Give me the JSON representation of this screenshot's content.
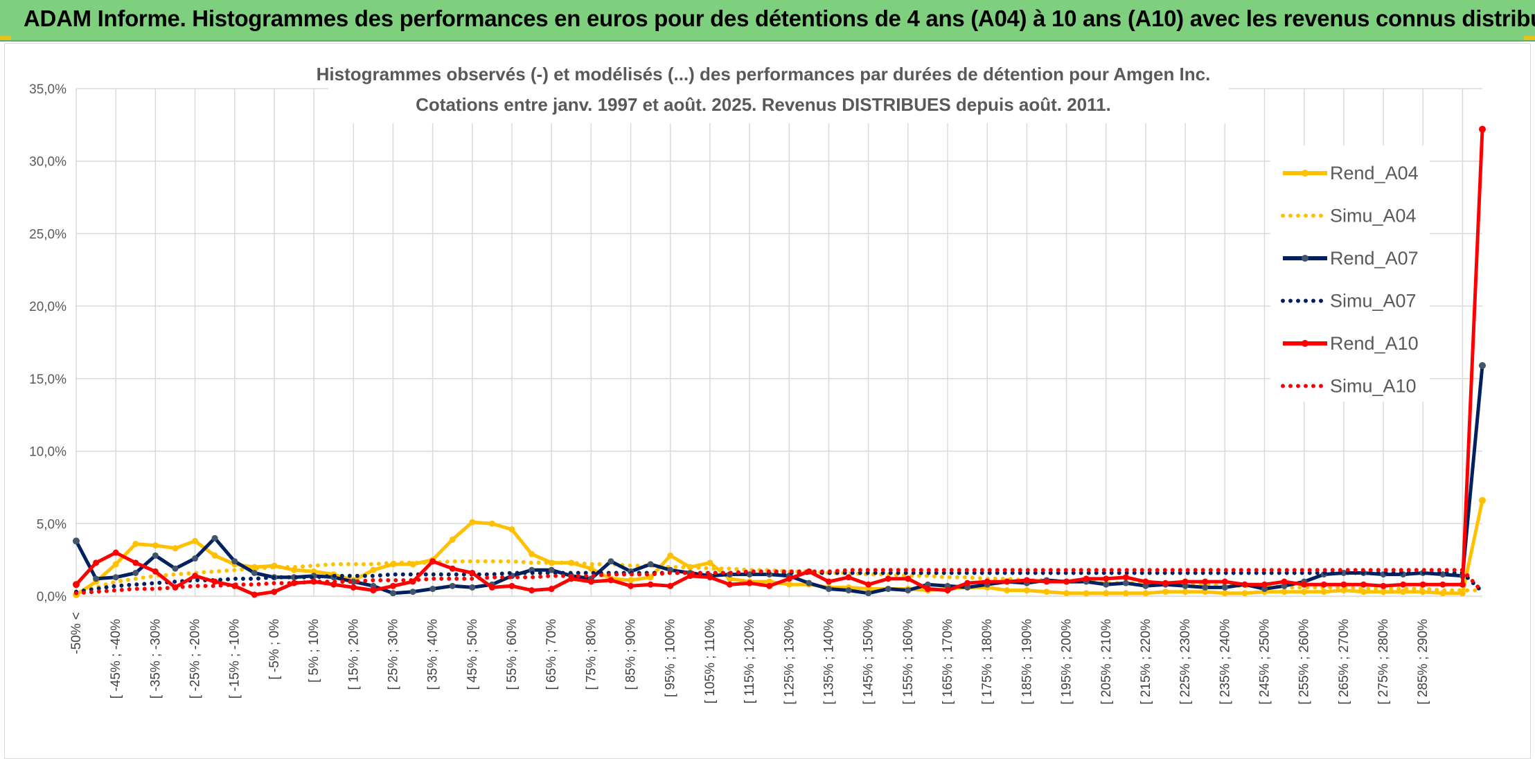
{
  "header": {
    "title": "ADAM Informe. Histogrammes des performances en euros pour des détentions de 4 ans (A04) à 10 ans (A10) avec les revenus connus distribués"
  },
  "chart_data": {
    "type": "line",
    "title_line1": "Histogrammes observés (-) et modélisés (...) des performances par durées de détention pour Amgen Inc.",
    "title_line2": "Cotations entre janv. 1997 et août. 2025. Revenus DISTRIBUES depuis août. 2011.",
    "ylim": [
      0,
      35
    ],
    "y_ticks": [
      "0,0%",
      "5,0%",
      "10,0%",
      "15,0%",
      "20,0%",
      "25,0%",
      "30,0%",
      "35,0%"
    ],
    "grid": true,
    "legend_position": "right",
    "x_labels": [
      "-50% <",
      "[ -45% ; -40%",
      "[ -35% ; -30%",
      "[ -25% ; -20%",
      "[ -15% ; -10%",
      "[ -5% ; 0%",
      "[ 5% ; 10%",
      "[ 15% ; 20%",
      "[ 25% ; 30%",
      "[ 35% ; 40%",
      "[ 45% ; 50%",
      "[ 55% ; 60%",
      "[ 65% ; 70%",
      "[ 75% ; 80%",
      "[ 85% ; 90%",
      "[ 95% ; 100%",
      "[ 105% ; 110%",
      "[ 115% ; 120%",
      "[ 125% ; 130%",
      "[ 135% ; 140%",
      "[ 145% ; 150%",
      "[ 155% ; 160%",
      "[ 165% ; 170%",
      "[ 175% ; 180%",
      "[ 185% ; 190%",
      "[ 195% ; 200%",
      "[ 205% ; 210%",
      "[ 215% ; 220%",
      "[ 225% ; 230%",
      "[ 235% ; 240%",
      "[ 245% ; 250%",
      "[ 255% ; 260%",
      "[ 265% ; 270%",
      "[ 275% ; 280%",
      "[ 285% ; 290%"
    ],
    "series": [
      {
        "name": "Rend_A04",
        "color": "#ffc000",
        "style": "solid",
        "values": [
          0.1,
          1.0,
          2.2,
          3.6,
          3.5,
          3.3,
          3.8,
          2.8,
          2.2,
          2.0,
          2.1,
          1.8,
          1.7,
          1.5,
          1.1,
          1.8,
          2.2,
          2.2,
          2.5,
          3.9,
          5.1,
          5.0,
          4.6,
          2.9,
          2.3,
          2.3,
          1.9,
          1.2,
          1.1,
          1.3,
          2.8,
          2.0,
          2.3,
          1.2,
          1.0,
          1.0,
          0.8,
          0.8,
          0.6,
          0.6,
          0.5,
          0.5,
          0.5,
          0.4,
          0.5,
          0.6,
          0.6,
          0.4,
          0.4,
          0.3,
          0.2,
          0.2,
          0.2,
          0.2,
          0.2,
          0.3,
          0.3,
          0.3,
          0.2,
          0.2,
          0.3,
          0.3,
          0.3,
          0.3,
          0.4,
          0.3,
          0.3,
          0.3,
          0.3,
          0.2,
          0.2,
          6.6
        ]
      },
      {
        "name": "Simu_A04",
        "color": "#ffc000",
        "style": "dotted",
        "values": [
          0.3,
          0.6,
          1.0,
          1.2,
          1.4,
          1.5,
          1.6,
          1.7,
          1.8,
          1.9,
          2.0,
          2.0,
          2.1,
          2.2,
          2.2,
          2.2,
          2.3,
          2.3,
          2.3,
          2.4,
          2.4,
          2.4,
          2.4,
          2.3,
          2.3,
          2.3,
          2.2,
          2.2,
          2.1,
          2.1,
          2.0,
          2.0,
          1.9,
          1.9,
          1.8,
          1.8,
          1.7,
          1.7,
          1.6,
          1.6,
          1.5,
          1.5,
          1.4,
          1.4,
          1.3,
          1.3,
          1.2,
          1.2,
          1.1,
          1.1,
          1.0,
          1.0,
          0.9,
          0.9,
          0.9,
          0.8,
          0.8,
          0.8,
          0.7,
          0.7,
          0.7,
          0.6,
          0.6,
          0.6,
          0.6,
          0.5,
          0.5,
          0.5,
          0.5,
          0.4,
          0.4,
          0.4
        ]
      },
      {
        "name": "Rend_A07",
        "color": "#002060",
        "style": "solid",
        "values": [
          3.8,
          1.2,
          1.3,
          1.6,
          2.8,
          1.9,
          2.6,
          4.0,
          2.4,
          1.6,
          1.3,
          1.3,
          1.4,
          1.3,
          1.0,
          0.7,
          0.2,
          0.3,
          0.5,
          0.7,
          0.6,
          0.8,
          1.4,
          1.8,
          1.8,
          1.4,
          1.2,
          2.4,
          1.7,
          2.2,
          1.8,
          1.6,
          1.4,
          1.5,
          1.5,
          1.5,
          1.4,
          0.9,
          0.5,
          0.4,
          0.2,
          0.5,
          0.4,
          0.8,
          0.7,
          0.6,
          0.8,
          1.0,
          0.9,
          1.1,
          1.0,
          1.0,
          0.8,
          0.9,
          0.7,
          0.8,
          0.7,
          0.6,
          0.6,
          0.8,
          0.5,
          0.7,
          1.0,
          1.5,
          1.6,
          1.6,
          1.5,
          1.5,
          1.6,
          1.5,
          1.4,
          15.9
        ]
      },
      {
        "name": "Simu_A07",
        "color": "#002060",
        "style": "dotted",
        "values": [
          0.3,
          0.5,
          0.7,
          0.8,
          0.9,
          1.0,
          1.1,
          1.1,
          1.2,
          1.2,
          1.3,
          1.3,
          1.3,
          1.4,
          1.4,
          1.4,
          1.5,
          1.5,
          1.5,
          1.5,
          1.5,
          1.5,
          1.6,
          1.6,
          1.6,
          1.6,
          1.6,
          1.6,
          1.6,
          1.6,
          1.6,
          1.6,
          1.6,
          1.6,
          1.6,
          1.6,
          1.6,
          1.6,
          1.6,
          1.6,
          1.6,
          1.6,
          1.6,
          1.6,
          1.6,
          1.6,
          1.6,
          1.6,
          1.6,
          1.6,
          1.6,
          1.6,
          1.6,
          1.6,
          1.6,
          1.6,
          1.6,
          1.6,
          1.6,
          1.6,
          1.6,
          1.6,
          1.6,
          1.6,
          1.6,
          1.6,
          1.6,
          1.6,
          1.6,
          1.6,
          1.6,
          0.3
        ]
      },
      {
        "name": "Rend_A10",
        "color": "#ff0000",
        "style": "solid",
        "values": [
          0.8,
          2.3,
          3.0,
          2.3,
          1.7,
          0.6,
          1.4,
          1.0,
          0.7,
          0.1,
          0.3,
          0.9,
          1.0,
          0.8,
          0.6,
          0.4,
          0.7,
          1.0,
          2.4,
          1.9,
          1.6,
          0.6,
          0.7,
          0.4,
          0.5,
          1.2,
          1.0,
          1.1,
          0.7,
          0.8,
          0.7,
          1.4,
          1.3,
          0.8,
          0.9,
          0.7,
          1.2,
          1.7,
          1.0,
          1.3,
          0.8,
          1.2,
          1.2,
          0.5,
          0.4,
          0.9,
          1.0,
          1.0,
          1.1,
          1.0,
          1.0,
          1.2,
          1.2,
          1.3,
          1.0,
          0.9,
          1.0,
          1.0,
          1.0,
          0.8,
          0.8,
          1.0,
          0.8,
          0.8,
          0.8,
          0.8,
          0.7,
          0.8,
          0.8,
          0.8,
          0.8,
          32.2
        ]
      },
      {
        "name": "Simu_A10",
        "color": "#ff0000",
        "style": "dotted",
        "values": [
          0.2,
          0.3,
          0.4,
          0.5,
          0.5,
          0.6,
          0.7,
          0.7,
          0.8,
          0.8,
          0.9,
          0.9,
          1.0,
          1.0,
          1.0,
          1.1,
          1.1,
          1.1,
          1.2,
          1.2,
          1.2,
          1.3,
          1.3,
          1.3,
          1.4,
          1.4,
          1.4,
          1.5,
          1.5,
          1.5,
          1.6,
          1.6,
          1.6,
          1.6,
          1.7,
          1.7,
          1.7,
          1.7,
          1.7,
          1.8,
          1.8,
          1.8,
          1.8,
          1.8,
          1.8,
          1.8,
          1.8,
          1.8,
          1.8,
          1.8,
          1.8,
          1.8,
          1.8,
          1.8,
          1.8,
          1.8,
          1.8,
          1.8,
          1.8,
          1.8,
          1.8,
          1.8,
          1.8,
          1.8,
          1.8,
          1.8,
          1.8,
          1.8,
          1.8,
          1.8,
          1.8,
          0.3
        ]
      }
    ]
  }
}
